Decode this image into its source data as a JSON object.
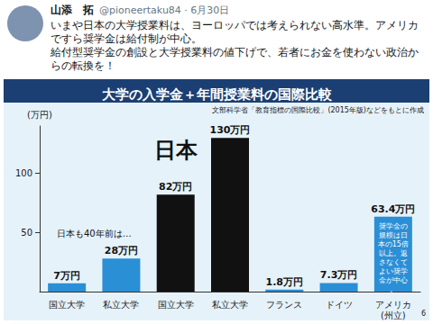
{
  "tweet": {
    "name": "山添　拓",
    "handle_line": "@pioneertaku84 · 6月30日",
    "text": [
      "いまや日本の大学授業料は、ヨーロッパでは考えられない高水準。アメリカですら奨学金は給付制が中心。",
      "給付型奨学金の創設と大学授業料の値下げで、若者にお金を使わない政治からの転換を！"
    ]
  },
  "page_number": "6",
  "chart_data": {
    "type": "bar",
    "title": "大学の入学金＋年間授業料の国際比較",
    "subtitle": "文部科学省「教育指標の国際比較」(2015年版)などをもとに作成",
    "y_label": "(万円)",
    "categories": [
      "国立大学",
      "私立大学",
      "国立大学",
      "私立大学",
      "フランス",
      "ドイツ",
      "アメリカ(州立)"
    ],
    "values": [
      7,
      28,
      82,
      130,
      1.8,
      7.3,
      63.4
    ],
    "value_labels": [
      "7万円",
      "28万円",
      "82万円",
      "130万円",
      "1.8万円",
      "7.3万円",
      "63.4万円"
    ],
    "colors": [
      "#2b8fd6",
      "#2b8fd6",
      "#111111",
      "#111111",
      "#2b8fd6",
      "#2b8fd6",
      "#2b8fd6"
    ],
    "annotations": {
      "japan": "日本",
      "japan_past": "日本も40年前は…",
      "usa_note": "奨学金の規模は日本の15倍以上。返さなくてよい奨学金が中心。"
    },
    "ylim": [
      0,
      140
    ],
    "yticks": [
      50,
      100
    ],
    "grid": false,
    "data_labels": true
  }
}
